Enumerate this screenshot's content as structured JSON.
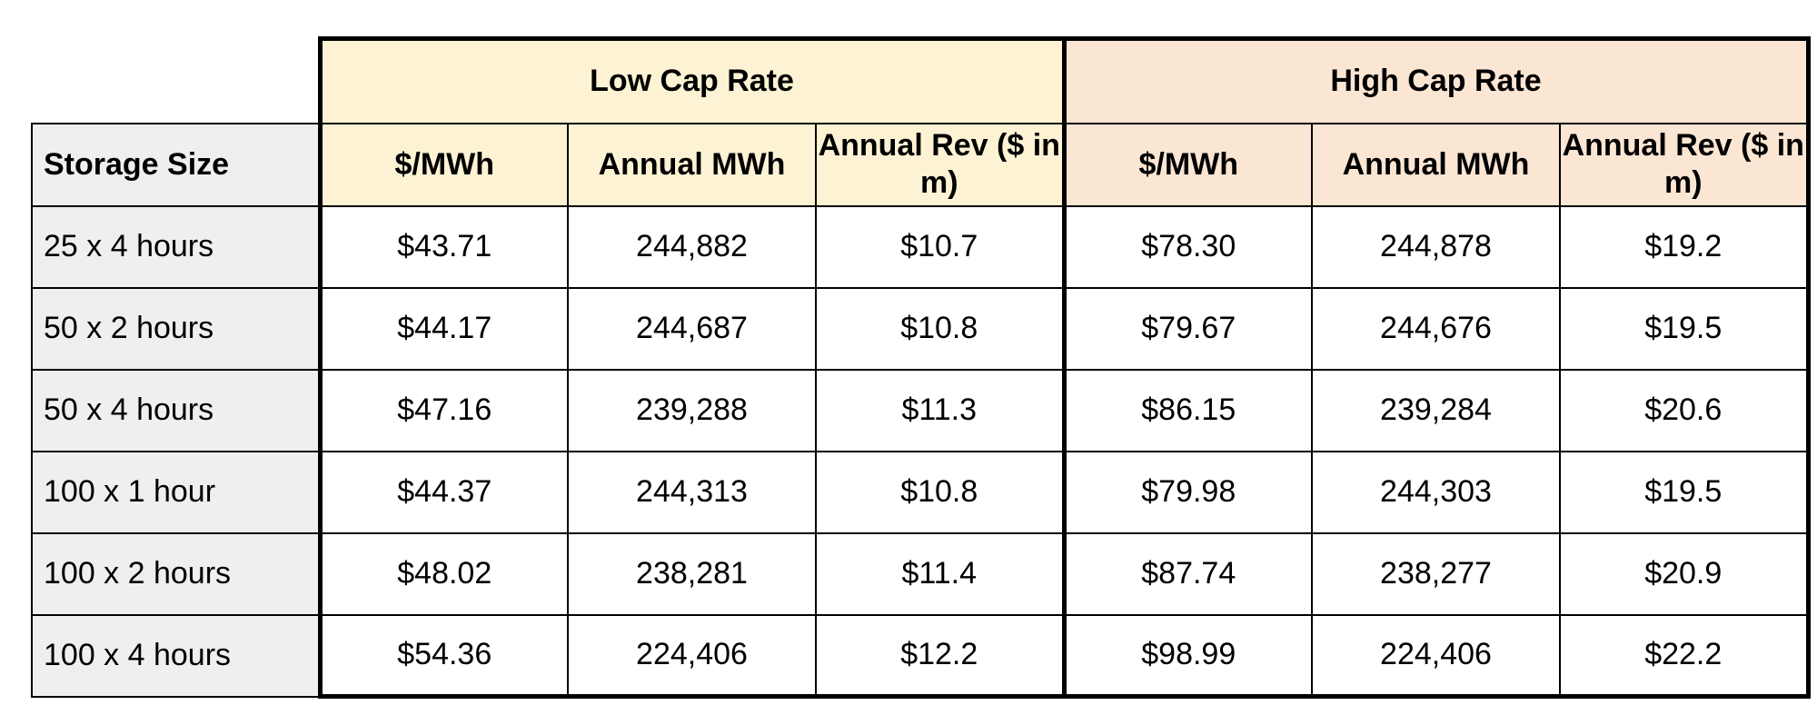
{
  "table": {
    "corner_label": "Storage Size",
    "groups": [
      {
        "label": "Low Cap Rate",
        "color": "#fdf3d4"
      },
      {
        "label": "High Cap Rate",
        "color": "#fbe6d3"
      }
    ],
    "columns": {
      "low": [
        "$/MWh",
        "Annual MWh",
        "Annual Rev ($ in m)"
      ],
      "high": [
        "$/MWh",
        "Annual MWh",
        "Annual Rev ($ in m)"
      ]
    },
    "rows": [
      {
        "size": "25 x 4 hours",
        "low": [
          "$43.71",
          "244,882",
          "$10.7"
        ],
        "high": [
          "$78.30",
          "244,878",
          "$19.2"
        ]
      },
      {
        "size": "50 x 2 hours",
        "low": [
          "$44.17",
          "244,687",
          "$10.8"
        ],
        "high": [
          "$79.67",
          "244,676",
          "$19.5"
        ]
      },
      {
        "size": "50 x 4 hours",
        "low": [
          "$47.16",
          "239,288",
          "$11.3"
        ],
        "high": [
          "$86.15",
          "239,284",
          "$20.6"
        ]
      },
      {
        "size": "100 x 1 hour",
        "low": [
          "$44.37",
          "244,313",
          "$10.8"
        ],
        "high": [
          "$79.98",
          "244,303",
          "$19.5"
        ]
      },
      {
        "size": "100 x 2 hours",
        "low": [
          "$48.02",
          "238,281",
          "$11.4"
        ],
        "high": [
          "$87.74",
          "238,277",
          "$20.9"
        ]
      },
      {
        "size": "100 x 4 hours",
        "low": [
          "$54.36",
          "224,406",
          "$12.2"
        ],
        "high": [
          "$98.99",
          "224,406",
          "$22.2"
        ]
      }
    ]
  },
  "chart_data": {
    "type": "table",
    "title": "",
    "columns": [
      "Storage Size",
      "Low Cap Rate $/MWh",
      "Low Cap Rate Annual MWh",
      "Low Cap Rate Annual Rev ($ in m)",
      "High Cap Rate $/MWh",
      "High Cap Rate Annual MWh",
      "High Cap Rate Annual Rev ($ in m)"
    ],
    "rows": [
      [
        "25 x 4 hours",
        "$43.71",
        "244,882",
        "$10.7",
        "$78.30",
        "244,878",
        "$19.2"
      ],
      [
        "50 x 2 hours",
        "$44.17",
        "244,687",
        "$10.8",
        "$79.67",
        "244,676",
        "$19.5"
      ],
      [
        "50 x 4 hours",
        "$47.16",
        "239,288",
        "$11.3",
        "$86.15",
        "239,284",
        "$20.6"
      ],
      [
        "100 x 1 hour",
        "$44.37",
        "244,313",
        "$10.8",
        "$79.98",
        "244,303",
        "$19.5"
      ],
      [
        "100 x 2 hours",
        "$48.02",
        "238,281",
        "$11.4",
        "$87.74",
        "238,277",
        "$20.9"
      ],
      [
        "100 x 4 hours",
        "$54.36",
        "224,406",
        "$12.2",
        "$98.99",
        "224,406",
        "$22.2"
      ]
    ]
  }
}
